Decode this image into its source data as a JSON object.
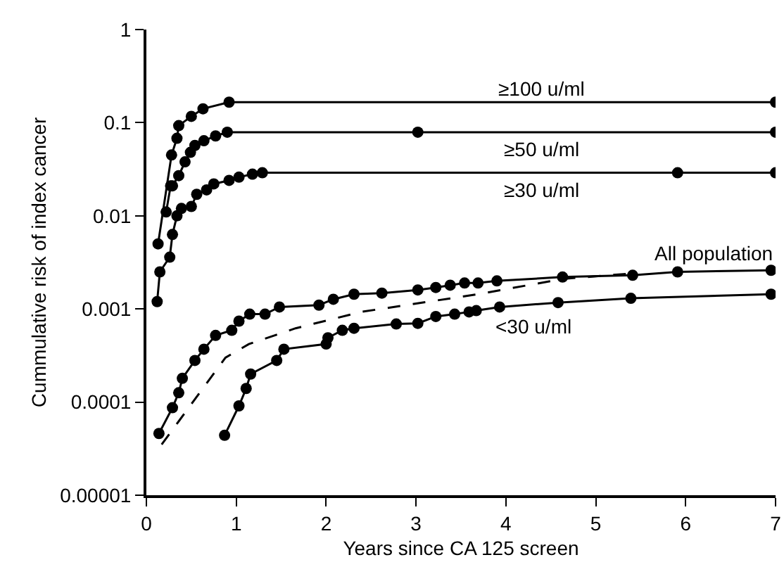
{
  "chart_data": {
    "type": "line",
    "xlabel": "Years since CA 125 screen",
    "ylabel": "Cummulative risk of index cancer",
    "log": "y",
    "xlim": [
      0,
      7
    ],
    "xticks": [
      0,
      1,
      2,
      3,
      4,
      5,
      6,
      7
    ],
    "ylim": [
      1e-05,
      1
    ],
    "yticks": [
      1,
      0.1,
      0.01,
      0.001,
      0.0001,
      {
        "value": 1e-05,
        "label": "0.00001"
      }
    ],
    "grid": false,
    "legend": false,
    "marker": "circle",
    "line_style": "solid",
    "series": [
      {
        "name": "≥100 u/ml",
        "color": "#000000",
        "x": [
          0.13,
          0.28,
          0.34,
          0.36,
          0.5,
          0.63,
          0.92,
          7
        ],
        "values": [
          0.005,
          0.045,
          0.068,
          0.093,
          0.117,
          0.141,
          0.166,
          0.166
        ]
      },
      {
        "name": "≥50 u/ml",
        "color": "#000000",
        "x": [
          0.22,
          0.27,
          0.29,
          0.36,
          0.43,
          0.49,
          0.54,
          0.64,
          0.77,
          0.9,
          3.02,
          7
        ],
        "values": [
          0.011,
          0.021,
          0.021,
          0.027,
          0.038,
          0.048,
          0.057,
          0.064,
          0.072,
          0.079,
          0.079,
          0.079
        ]
      },
      {
        "name": "≥30 u/ml",
        "color": "#000000",
        "x": [
          0.12,
          0.15,
          0.26,
          0.29,
          0.34,
          0.39,
          0.5,
          0.56,
          0.67,
          0.75,
          0.92,
          1.03,
          1.18,
          1.29,
          5.91,
          7
        ],
        "values": [
          0.0012,
          0.0025,
          0.0036,
          0.0063,
          0.01,
          0.012,
          0.0126,
          0.017,
          0.019,
          0.022,
          0.024,
          0.026,
          0.028,
          0.029,
          0.029,
          0.029
        ]
      },
      {
        "name": "All population",
        "color": "#000000",
        "x": [
          0.14,
          0.29,
          0.36,
          0.4,
          0.54,
          0.64,
          0.77,
          0.95,
          1.03,
          1.15,
          1.32,
          1.48,
          1.92,
          2.08,
          2.31,
          2.62,
          3.02,
          3.22,
          3.38,
          3.54,
          3.69,
          3.9,
          4.63,
          5.41,
          5.91,
          6.95
        ],
        "values": [
          4.6e-05,
          8.7e-05,
          0.000126,
          0.00018,
          0.00028,
          0.00037,
          0.00052,
          0.00059,
          0.00074,
          0.00088,
          0.00088,
          0.00105,
          0.0011,
          0.00127,
          0.00144,
          0.00148,
          0.0016,
          0.0017,
          0.0018,
          0.0019,
          0.0019,
          0.002,
          0.0022,
          0.0023,
          0.0025,
          0.0026
        ]
      },
      {
        "name": "<30 u/ml",
        "color": "#000000",
        "x": [
          0.87,
          1.03,
          1.11,
          1.16,
          1.45,
          1.53,
          2.0,
          2.02,
          2.18,
          2.31,
          2.78,
          3.02,
          3.22,
          3.43,
          3.59,
          3.67,
          3.93,
          4.58,
          5.39,
          6.95
        ],
        "values": [
          4.4e-05,
          9.1e-05,
          0.00014,
          0.0002,
          0.00028,
          0.00037,
          0.00042,
          0.00049,
          0.00059,
          0.00062,
          0.00069,
          0.0007,
          0.00083,
          0.00088,
          0.00093,
          0.00096,
          0.00105,
          0.00117,
          0.0013,
          0.00144
        ]
      },
      {
        "color": "#000000",
        "marker": "none",
        "line_style": "dashed",
        "x": [
          0.17,
          0.88,
          1.14,
          1.66,
          2.39,
          3.69,
          4.63,
          5.39
        ],
        "values": [
          3.5e-05,
          0.0003,
          0.00042,
          0.00062,
          0.00093,
          0.00144,
          0.0021,
          0.0024
        ]
      }
    ]
  }
}
